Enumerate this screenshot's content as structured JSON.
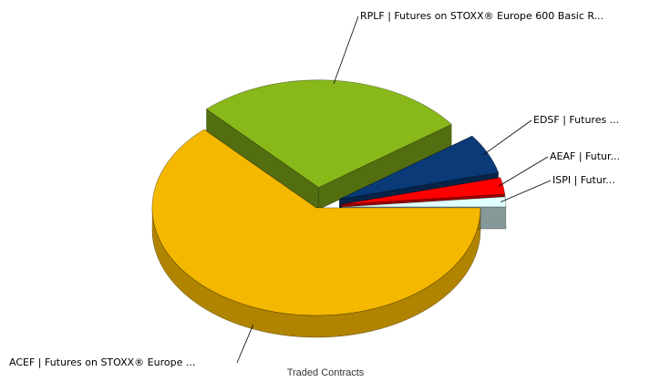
{
  "chart_data": {
    "type": "pie",
    "title": "Traded Contracts",
    "categories": [
      "ACEF | Futures on STOXX® Europe ...",
      "RPLF | Futures on STOXX® Europe 600 Basic R...",
      "EDSF | Futures ...",
      "AEAF | Futur...",
      "ISPI | Futur..."
    ],
    "values": [
      63,
      27,
      6,
      2.5,
      1.5
    ],
    "colors": [
      "#f5b800",
      "#88b81a",
      "#0a3a78",
      "#ff0000",
      "#e0ffff"
    ]
  }
}
